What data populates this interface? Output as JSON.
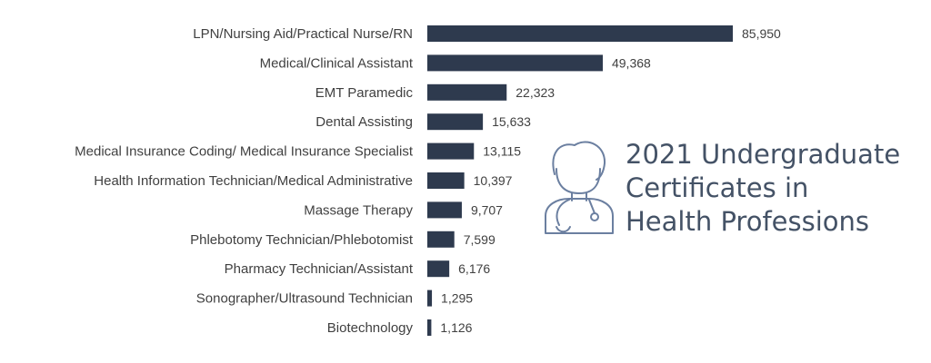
{
  "chart_data": {
    "type": "bar",
    "orientation": "horizontal",
    "title": "2021 Undergraduate Certificates in Health Professions",
    "title_lines": [
      "2021 Undergraduate",
      "Certificates in",
      "Health Professions"
    ],
    "categories": [
      "LPN/Nursing Aid/Practical Nurse/RN",
      "Medical/Clinical Assistant",
      "EMT Paramedic",
      "Dental Assisting",
      "Medical Insurance Coding/ Medical Insurance Specialist",
      "Health Information Technician/Medical Administrative",
      "Massage Therapy",
      "Phlebotomy Technician/Phlebotomist",
      "Pharmacy Technician/Assistant",
      "Sonographer/Ultrasound Technician",
      "Biotechnology"
    ],
    "values": [
      85950,
      49368,
      22323,
      15633,
      13115,
      10397,
      9707,
      7599,
      6176,
      1295,
      1126
    ],
    "value_labels": [
      "85,950",
      "49,368",
      "22,323",
      "15,633",
      "13,115",
      "10,397",
      "9,707",
      "7,599",
      "6,176",
      "1,295",
      "1,126"
    ],
    "xlabel": "",
    "ylabel": "",
    "xlim": [
      0,
      85950
    ],
    "grid": false,
    "legend": "none",
    "bar_color": "#2e3a4e",
    "icon_color": "#6b7fa0",
    "icon": "healthcare-worker-icon"
  }
}
